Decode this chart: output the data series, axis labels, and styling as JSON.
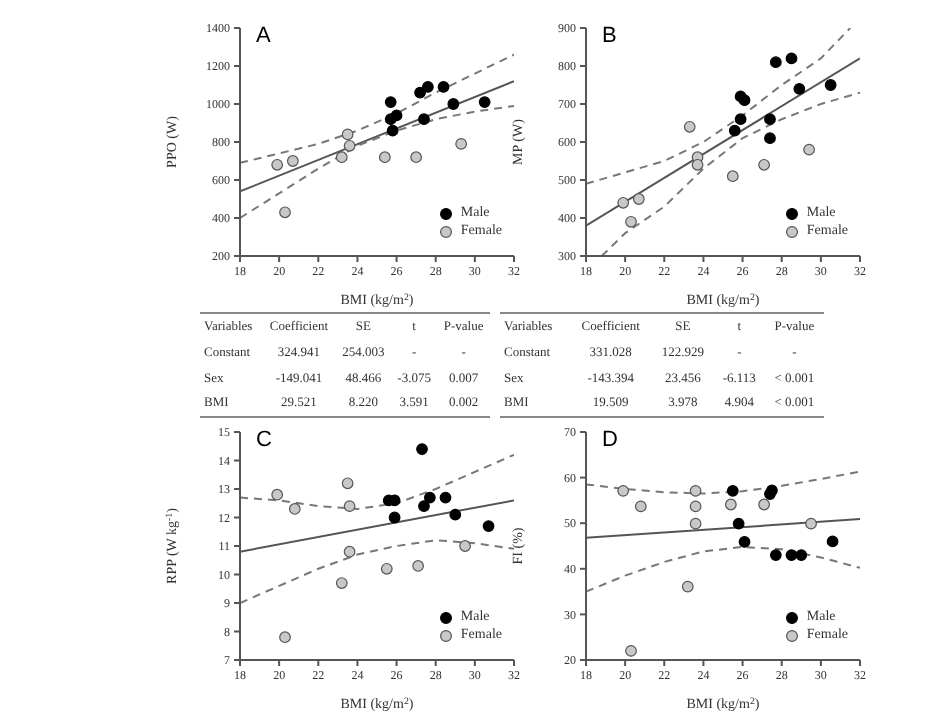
{
  "chart_data": [
    {
      "type": "scatter",
      "title": "A",
      "xlabel": "BMI (kg/m$^{2}$)",
      "ylabel": "PPO (W)",
      "xlim": [
        18,
        32
      ],
      "xticks": [
        18,
        20,
        22,
        24,
        26,
        28,
        30,
        32
      ],
      "ylim": [
        200,
        1400
      ],
      "yticks": [
        200,
        400,
        600,
        800,
        1000,
        1200,
        1400
      ],
      "marker": "circle",
      "legend": "bottom right",
      "series": [
        {
          "name": "Male",
          "color": "#000000",
          "x": [
            25.7,
            25.7,
            26.0,
            25.8,
            27.2,
            27.6,
            28.4,
            27.4,
            28.9,
            30.5
          ],
          "values": [
            1010,
            920,
            940,
            860,
            1060,
            1090,
            1090,
            920,
            1000,
            1010
          ]
        },
        {
          "name": "Female",
          "color": "#c8c8c8",
          "x": [
            19.9,
            20.7,
            20.3,
            23.2,
            23.6,
            23.5,
            25.4,
            27.0,
            29.3
          ],
          "values": [
            680,
            700,
            430,
            720,
            780,
            840,
            720,
            720,
            790
          ]
        },
        {
          "type": "line",
          "marker": "none",
          "color": "#555555",
          "line_style": "solid",
          "x": [
            18,
            32
          ],
          "values": [
            540,
            1120
          ]
        },
        {
          "type": "line",
          "marker": "none",
          "color": "#777777",
          "line_style": "dashed",
          "x": [
            18,
            20,
            22,
            24,
            26,
            28,
            30,
            32
          ],
          "values": [
            690,
            740,
            790,
            860,
            950,
            1060,
            1160,
            1260
          ]
        },
        {
          "type": "line",
          "marker": "none",
          "color": "#777777",
          "line_style": "dashed",
          "x": [
            18,
            20,
            22,
            24,
            26,
            28,
            30,
            32
          ],
          "values": [
            400,
            530,
            660,
            780,
            860,
            920,
            960,
            990
          ]
        }
      ]
    },
    {
      "type": "scatter",
      "title": "B",
      "xlabel": "BMI (kg/m$^{2}$)",
      "ylabel": "MP (W)",
      "xlim": [
        18,
        32
      ],
      "xticks": [
        18,
        20,
        22,
        24,
        26,
        28,
        30,
        32
      ],
      "ylim": [
        300,
        900
      ],
      "yticks": [
        300,
        400,
        500,
        600,
        700,
        800,
        900
      ],
      "marker": "circle",
      "legend": "bottom right",
      "series": [
        {
          "name": "Male",
          "color": "#000000",
          "x": [
            25.9,
            26.1,
            25.9,
            25.6,
            27.4,
            27.4,
            27.7,
            28.5,
            28.9,
            30.5
          ],
          "values": [
            720,
            710,
            660,
            630,
            660,
            610,
            810,
            820,
            740,
            750
          ]
        },
        {
          "name": "Female",
          "color": "#c8c8c8",
          "x": [
            19.9,
            20.7,
            20.3,
            23.3,
            23.7,
            23.7,
            25.5,
            27.1,
            29.4
          ],
          "values": [
            440,
            450,
            390,
            640,
            560,
            540,
            510,
            540,
            580
          ]
        },
        {
          "type": "line",
          "marker": "none",
          "color": "#555555",
          "line_style": "solid",
          "x": [
            18,
            32
          ],
          "values": [
            380,
            820
          ]
        },
        {
          "type": "line",
          "marker": "none",
          "color": "#777777",
          "line_style": "dashed",
          "x": [
            18,
            20,
            22,
            24,
            26,
            28,
            30,
            31.5
          ],
          "values": [
            490,
            520,
            550,
            600,
            670,
            750,
            820,
            900
          ]
        },
        {
          "type": "line",
          "marker": "none",
          "color": "#777777",
          "line_style": "dashed",
          "x": [
            18.8,
            20,
            22,
            24,
            26,
            28,
            30,
            32
          ],
          "values": [
            300,
            360,
            430,
            530,
            610,
            660,
            700,
            730
          ]
        }
      ]
    },
    {
      "type": "other",
      "annotations": [
        "Variables",
        "Coefficient",
        "SE",
        "t",
        "P-value",
        "Constant",
        "324.941",
        "254.003",
        "-",
        "-",
        "Sex",
        "-149.041",
        "48.466",
        "-3.075",
        "0.007",
        "BMI",
        "29.521",
        "8.220",
        "3.591",
        "0.002"
      ]
    },
    {
      "type": "other",
      "annotations": [
        "Variables",
        "Coefficient",
        "SE",
        "t",
        "P-value",
        "Constant",
        "331.028",
        "122.929",
        "-",
        "-",
        "Sex",
        "-143.394",
        "23.456",
        "-6.113",
        "< 0.001",
        "BMI",
        "19.509",
        "3.978",
        "4.904",
        "< 0.001"
      ]
    },
    {
      "type": "scatter",
      "title": "C",
      "xlabel": "BMI (kg/m$^{2}$)",
      "ylabel": "RPP (W kg$^{-1}$)",
      "xlim": [
        18,
        32
      ],
      "xticks": [
        18,
        20,
        22,
        24,
        26,
        28,
        30,
        32
      ],
      "ylim": [
        7,
        15
      ],
      "yticks": [
        7,
        8,
        9,
        10,
        11,
        12,
        13,
        14,
        15
      ],
      "marker": "circle",
      "legend": "bottom right",
      "series": [
        {
          "name": "Male",
          "color": "#000000",
          "x": [
            25.6,
            25.9,
            25.9,
            27.4,
            27.7,
            28.5,
            29.0,
            30.7,
            27.3
          ],
          "values": [
            12.6,
            12.6,
            12.0,
            12.4,
            12.7,
            12.7,
            12.1,
            11.7,
            14.4
          ]
        },
        {
          "name": "Female",
          "color": "#c8c8c8",
          "x": [
            19.9,
            20.8,
            23.5,
            23.6,
            23.2,
            25.5,
            27.1,
            29.5,
            20.3,
            23.6
          ],
          "values": [
            12.8,
            12.3,
            13.2,
            12.4,
            9.7,
            10.2,
            10.3,
            11.0,
            7.8,
            10.8
          ]
        },
        {
          "type": "line",
          "marker": "none",
          "color": "#555555",
          "line_style": "solid",
          "x": [
            18,
            32
          ],
          "values": [
            10.8,
            12.6
          ]
        },
        {
          "type": "line",
          "marker": "none",
          "color": "#777777",
          "line_style": "dashed",
          "x": [
            18,
            20,
            22,
            24,
            26,
            28,
            30,
            32
          ],
          "values": [
            12.7,
            12.6,
            12.4,
            12.3,
            12.5,
            13.0,
            13.6,
            14.2
          ]
        },
        {
          "type": "line",
          "marker": "none",
          "color": "#777777",
          "line_style": "dashed",
          "x": [
            18,
            20,
            22,
            24,
            26,
            28,
            30,
            32
          ],
          "values": [
            9.0,
            9.6,
            10.2,
            10.7,
            11.0,
            11.2,
            11.1,
            10.9
          ]
        }
      ]
    },
    {
      "type": "scatter",
      "title": "D",
      "xlabel": "BMI (kg/m$^{2}$)",
      "ylabel": "FI (%)",
      "xlim": [
        18,
        32
      ],
      "xticks": [
        18,
        20,
        22,
        24,
        26,
        28,
        30,
        32
      ],
      "ylim": [
        20,
        70
      ],
      "yticks": [
        20,
        30,
        40,
        50,
        60,
        70
      ],
      "marker": "circle",
      "legend": "bottom right",
      "series": [
        {
          "name": "Male",
          "color": "#000000",
          "x": [
            25.5,
            25.8,
            26.1,
            27.4,
            27.5,
            27.7,
            28.5,
            29.0,
            30.6
          ],
          "values": [
            57.1,
            49.9,
            45.9,
            56.4,
            57.2,
            43.0,
            43.0,
            43.0,
            46.0
          ]
        },
        {
          "name": "Female",
          "color": "#c8c8c8",
          "x": [
            19.9,
            20.8,
            23.6,
            23.6,
            23.6,
            25.4,
            27.1,
            29.5,
            23.2,
            20.3
          ],
          "values": [
            57.1,
            53.7,
            57.1,
            53.7,
            49.9,
            54.1,
            54.1,
            49.9,
            36.1,
            22.0
          ]
        },
        {
          "type": "line",
          "marker": "none",
          "color": "#555555",
          "line_style": "solid",
          "x": [
            18,
            32
          ],
          "values": [
            46.8,
            50.9
          ]
        },
        {
          "type": "line",
          "marker": "none",
          "color": "#777777",
          "line_style": "dashed",
          "x": [
            18,
            20,
            22,
            24,
            26,
            28,
            30,
            32
          ],
          "values": [
            58.5,
            57.5,
            56.8,
            56.5,
            57.0,
            58.2,
            59.7,
            61.3
          ]
        },
        {
          "type": "line",
          "marker": "none",
          "color": "#777777",
          "line_style": "dashed",
          "x": [
            18,
            20,
            22,
            24,
            26,
            28,
            30,
            32
          ],
          "values": [
            35.0,
            38.5,
            41.5,
            43.8,
            44.8,
            44.3,
            42.5,
            40.2
          ]
        }
      ]
    }
  ]
}
